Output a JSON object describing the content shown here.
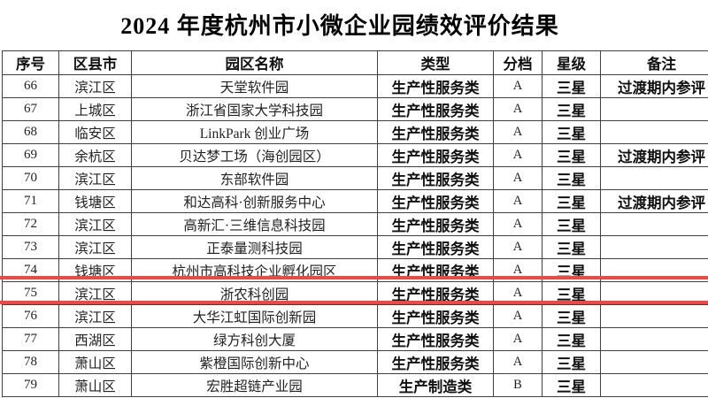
{
  "title": "2024 年度杭州市小微企业园绩效评价结果",
  "table": {
    "headers": [
      "序号",
      "区县市",
      "园区名称",
      "类型",
      "分档",
      "星级",
      "备注"
    ],
    "rows": [
      [
        "66",
        "滨江区",
        "天堂软件园",
        "生产性服务类",
        "A",
        "三星",
        "过渡期内参评"
      ],
      [
        "67",
        "上城区",
        "浙江省国家大学科技园",
        "生产性服务类",
        "A",
        "三星",
        ""
      ],
      [
        "68",
        "临安区",
        "LinkPark 创业广场",
        "生产性服务类",
        "A",
        "三星",
        ""
      ],
      [
        "69",
        "余杭区",
        "贝达梦工场（海创园区）",
        "生产性服务类",
        "A",
        "三星",
        "过渡期内参评"
      ],
      [
        "70",
        "滨江区",
        "东部软件园",
        "生产性服务类",
        "A",
        "三星",
        ""
      ],
      [
        "71",
        "钱塘区",
        "和达高科·创新服务中心",
        "生产性服务类",
        "A",
        "三星",
        "过渡期内参评"
      ],
      [
        "72",
        "滨江区",
        "高新汇·三维信息科技园",
        "生产性服务类",
        "A",
        "三星",
        ""
      ],
      [
        "73",
        "滨江区",
        "正泰量测科技园",
        "生产性服务类",
        "A",
        "三星",
        ""
      ],
      [
        "74",
        "钱塘区",
        "杭州市高科技企业孵化园区",
        "生产性服务类",
        "A",
        "三星",
        ""
      ],
      [
        "75",
        "滨江区",
        "浙农科创园",
        "生产性服务类",
        "A",
        "三星",
        ""
      ],
      [
        "76",
        "滨江区",
        "大华江虹国际创新园",
        "生产性服务类",
        "A",
        "三星",
        ""
      ],
      [
        "77",
        "西湖区",
        "绿方科创大厦",
        "生产性服务类",
        "A",
        "三星",
        ""
      ],
      [
        "78",
        "萧山区",
        "紫橙国际创新中心",
        "生产性服务类",
        "A",
        "三星",
        ""
      ],
      [
        "79",
        "萧山区",
        "宏胜超链产业园",
        "生产制造类",
        "B",
        "三星",
        ""
      ]
    ],
    "highlighted_row_number": "75",
    "highlight_color": "#ef4646"
  }
}
